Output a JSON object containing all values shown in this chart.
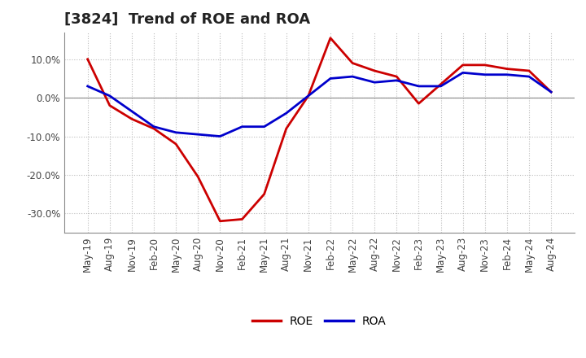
{
  "title": "[3824]  Trend of ROE and ROA",
  "x_labels": [
    "May-19",
    "Aug-19",
    "Nov-19",
    "Feb-20",
    "May-20",
    "Aug-20",
    "Nov-20",
    "Feb-21",
    "May-21",
    "Aug-21",
    "Nov-21",
    "Feb-22",
    "May-22",
    "Aug-22",
    "Nov-22",
    "Feb-23",
    "May-23",
    "Aug-23",
    "Nov-23",
    "Feb-24",
    "May-24",
    "Aug-24"
  ],
  "roe": [
    10.0,
    -2.0,
    -5.5,
    -8.0,
    -12.0,
    -20.5,
    -32.0,
    -31.5,
    -25.0,
    -8.0,
    0.5,
    15.5,
    9.0,
    7.0,
    5.5,
    -1.5,
    3.5,
    8.5,
    8.5,
    7.5,
    7.0,
    1.5
  ],
  "roa": [
    3.0,
    0.5,
    -3.5,
    -7.5,
    -9.0,
    -9.5,
    -10.0,
    -7.5,
    -7.5,
    -4.0,
    0.5,
    5.0,
    5.5,
    4.0,
    4.5,
    3.0,
    3.0,
    6.5,
    6.0,
    6.0,
    5.5,
    1.5
  ],
  "roe_color": "#cc0000",
  "roa_color": "#0000cc",
  "background_color": "#ffffff",
  "grid_color": "#bbbbbb",
  "ylim": [
    -35,
    17
  ],
  "yticks": [
    -30,
    -20,
    -10,
    0,
    10
  ],
  "legend_labels": [
    "ROE",
    "ROA"
  ],
  "line_width": 2.0,
  "title_fontsize": 13,
  "tick_fontsize": 8.5
}
